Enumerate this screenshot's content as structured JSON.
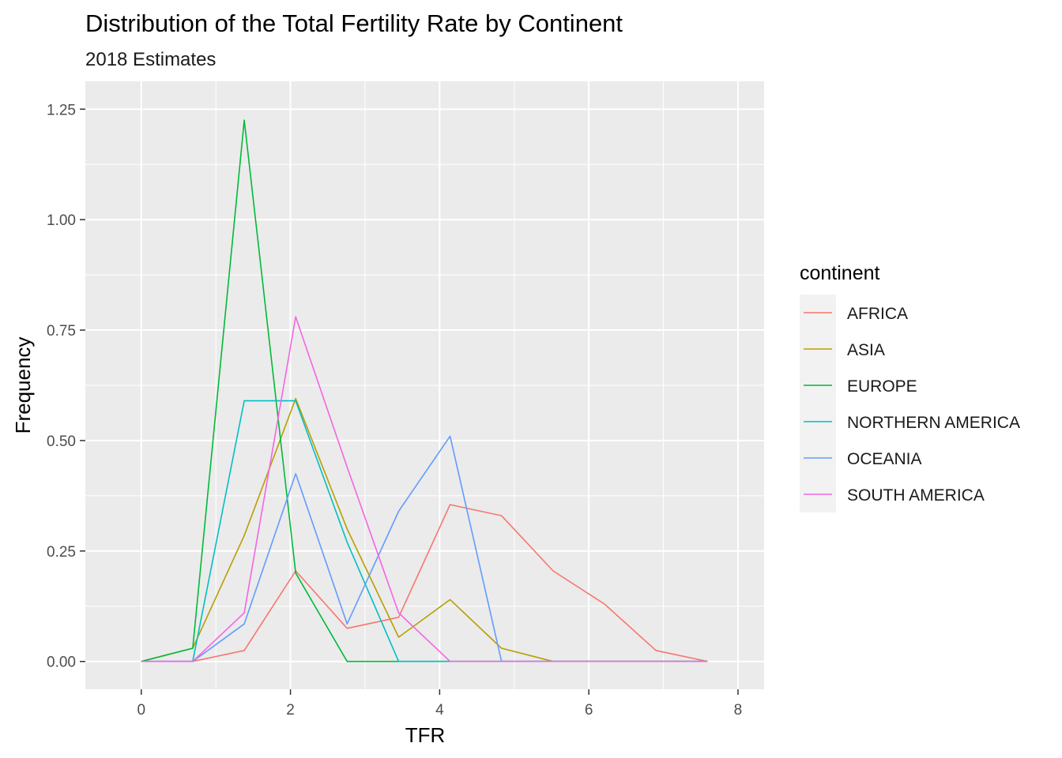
{
  "chart_data": {
    "type": "line",
    "title": "Distribution of the Total Fertility Rate by Continent",
    "subtitle": "2018 Estimates",
    "xlabel": "TFR",
    "ylabel": "Frequency",
    "xlim": [
      -0.75,
      8.35
    ],
    "ylim": [
      -0.063,
      1.313
    ],
    "x_ticks": [
      0,
      2,
      4,
      6,
      8
    ],
    "x_tick_labels": [
      "0",
      "2",
      "4",
      "6",
      "8"
    ],
    "y_ticks": [
      0,
      0.25,
      0.5,
      0.75,
      1.0,
      1.25
    ],
    "y_tick_labels": [
      "0.00",
      "0.25",
      "0.50",
      "0.75",
      "1.00",
      "1.25"
    ],
    "grid": true,
    "legend": {
      "title": "continent",
      "position": "right"
    },
    "x": [
      0.0,
      0.69,
      1.38,
      2.07,
      2.76,
      3.45,
      4.14,
      4.83,
      5.52,
      6.21,
      6.9,
      7.59
    ],
    "series": [
      {
        "name": "AFRICA",
        "color": "#F8766D",
        "values": [
          0,
          0,
          0.025,
          0.205,
          0.075,
          0.1,
          0.355,
          0.33,
          0.205,
          0.13,
          0.025,
          0
        ]
      },
      {
        "name": "ASIA",
        "color": "#B79F00",
        "values": [
          0,
          0.03,
          0.285,
          0.595,
          0.3,
          0.055,
          0.14,
          0.03,
          0,
          0,
          0,
          0
        ]
      },
      {
        "name": "EUROPE",
        "color": "#00BA38",
        "values": [
          0,
          0.03,
          1.225,
          0.2,
          0,
          0,
          0,
          0,
          0,
          0,
          0,
          0
        ]
      },
      {
        "name": "NORTHERN AMERICA",
        "color": "#00BFC4",
        "values": [
          0,
          0,
          0.59,
          0.59,
          0.27,
          0,
          0,
          0,
          0,
          0,
          0,
          0
        ]
      },
      {
        "name": "OCEANIA",
        "color": "#619CFF",
        "values": [
          0,
          0,
          0.085,
          0.425,
          0.085,
          0.34,
          0.51,
          0,
          0,
          0,
          0,
          0
        ]
      },
      {
        "name": "SOUTH AMERICA",
        "color": "#F564E3",
        "values": [
          0,
          0,
          0.11,
          0.78,
          0.44,
          0.11,
          0,
          0,
          0,
          0,
          0,
          0
        ]
      }
    ]
  }
}
